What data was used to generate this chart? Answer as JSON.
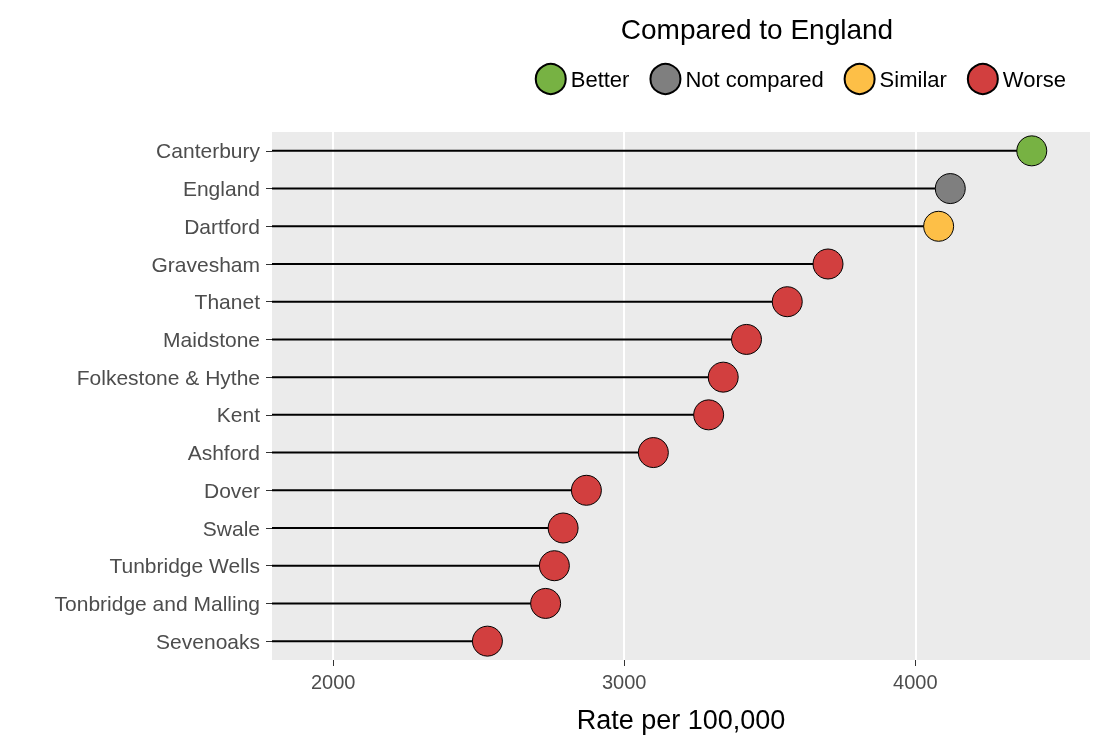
{
  "chart_data": {
    "type": "lollipop",
    "xlabel": "Rate per 100,000",
    "legend_title": "Compared to England",
    "categories": [
      "Canterbury",
      "England",
      "Dartford",
      "Gravesham",
      "Thanet",
      "Maidstone",
      "Folkestone & Hythe",
      "Kent",
      "Ashford",
      "Dover",
      "Swale",
      "Tunbridge Wells",
      "Tonbridge and Malling",
      "Sevenoaks"
    ],
    "orientation": "horizontal",
    "series": [
      {
        "name": "Better",
        "color": "#77b243",
        "values": [
          4400,
          null,
          null,
          null,
          null,
          null,
          null,
          null,
          null,
          null,
          null,
          null,
          null,
          null
        ]
      },
      {
        "name": "Not compared",
        "color": "#7f7f7f",
        "values": [
          null,
          4120,
          null,
          null,
          null,
          null,
          null,
          null,
          null,
          null,
          null,
          null,
          null,
          null
        ]
      },
      {
        "name": "Similar",
        "color": "#fdbf47",
        "values": [
          null,
          null,
          4080,
          null,
          null,
          null,
          null,
          null,
          null,
          null,
          null,
          null,
          null,
          null
        ]
      },
      {
        "name": "Worse",
        "color": "#d23f3f",
        "values": [
          null,
          null,
          null,
          3700,
          3560,
          3420,
          3340,
          3290,
          3100,
          2870,
          2790,
          2760,
          2730,
          2530
        ]
      }
    ],
    "xlim": [
      1790,
      4600
    ],
    "xticks": [
      2000,
      3000,
      4000
    ],
    "grid": "x",
    "legend": "top",
    "marker": "circle"
  }
}
